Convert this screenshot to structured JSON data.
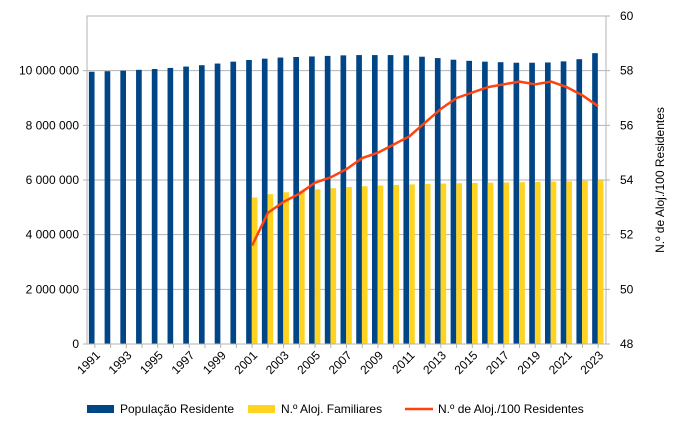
{
  "chart_data": {
    "type": "bar",
    "title": "",
    "xlabel": "",
    "ylabel": "",
    "y2label": "N.º de Aloj./100 Residentes",
    "ylim": [
      0,
      12000000
    ],
    "y_ticks": [
      "0",
      "2 000 000",
      "4 000 000",
      "6 000 000",
      "8 000 000",
      "10 000 000"
    ],
    "y_tick_values": [
      0,
      2000000,
      4000000,
      6000000,
      8000000,
      10000000
    ],
    "y2lim": [
      48,
      60
    ],
    "y2_ticks": [
      "48",
      "50",
      "52",
      "54",
      "56",
      "58",
      "60"
    ],
    "y2_tick_values": [
      48,
      50,
      52,
      54,
      56,
      58,
      60
    ],
    "x_tick_labels": [
      "1991",
      "1993",
      "1995",
      "1997",
      "1999",
      "2001",
      "2003",
      "2005",
      "2007",
      "2009",
      "2011",
      "2013",
      "2015",
      "2017",
      "2019",
      "2021",
      "2023"
    ],
    "categories": [
      "1991",
      "1992",
      "1993",
      "1994",
      "1995",
      "1996",
      "1997",
      "1998",
      "1999",
      "2000",
      "2001",
      "2002",
      "2003",
      "2004",
      "2005",
      "2006",
      "2007",
      "2008",
      "2009",
      "2010",
      "2011",
      "2012",
      "2013",
      "2014",
      "2015",
      "2016",
      "2017",
      "2018",
      "2019",
      "2020",
      "2021",
      "2022",
      "2023"
    ],
    "grid": true,
    "legend_position": "bottom",
    "series": [
      {
        "name": "População Residente",
        "type": "bar",
        "axis": "left",
        "color": "#004586",
        "values": [
          9960000,
          9980000,
          10000000,
          10030000,
          10060000,
          10100000,
          10150000,
          10200000,
          10260000,
          10330000,
          10390000,
          10440000,
          10480000,
          10500000,
          10520000,
          10540000,
          10560000,
          10570000,
          10570000,
          10570000,
          10560000,
          10510000,
          10460000,
          10400000,
          10360000,
          10330000,
          10310000,
          10290000,
          10290000,
          10300000,
          10340000,
          10420000,
          10640000
        ]
      },
      {
        "name": "N.º Aloj. Familiares",
        "type": "bar",
        "axis": "left",
        "color": "#ffd320",
        "values": [
          null,
          null,
          null,
          null,
          null,
          null,
          null,
          null,
          null,
          null,
          5360000,
          5480000,
          5550000,
          5610000,
          5660000,
          5700000,
          5740000,
          5770000,
          5800000,
          5820000,
          5840000,
          5860000,
          5870000,
          5880000,
          5890000,
          5900000,
          5910000,
          5920000,
          5930000,
          5940000,
          5950000,
          5970000,
          5990000
        ]
      },
      {
        "name": "N.º de Aloj./100 Residentes",
        "type": "line",
        "axis": "right",
        "color": "#ff420e",
        "values": [
          null,
          null,
          null,
          null,
          null,
          null,
          null,
          null,
          null,
          null,
          51.6,
          52.8,
          53.2,
          53.5,
          53.9,
          54.1,
          54.4,
          54.8,
          55.0,
          55.3,
          55.6,
          56.1,
          56.6,
          57.0,
          57.2,
          57.4,
          57.5,
          57.6,
          57.5,
          57.6,
          57.4,
          57.1,
          56.7
        ]
      }
    ]
  }
}
